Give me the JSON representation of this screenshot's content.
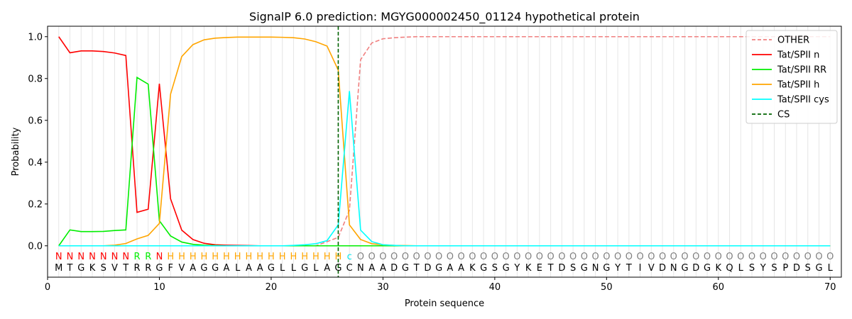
{
  "chart_data": {
    "type": "line",
    "title": "SignalP 6.0 prediction: MGYG000002450_01124 hypothetical protein",
    "xlabel": "Protein sequence",
    "ylabel": "Probability",
    "xlim": [
      0,
      71
    ],
    "ylim": [
      -0.15,
      1.05
    ],
    "xticks": [
      0,
      10,
      20,
      30,
      40,
      50,
      60,
      70
    ],
    "yticks": [
      0.0,
      0.2,
      0.4,
      0.6,
      0.8,
      1.0
    ],
    "xtick_labels": [
      "0",
      "10",
      "20",
      "30",
      "40",
      "50",
      "60",
      "70"
    ],
    "ytick_labels": [
      "0.0",
      "0.2",
      "0.4",
      "0.6",
      "0.8",
      "1.0"
    ],
    "grid": "vertical lines at each residue",
    "legend_position": "top-right",
    "cs_position": 26,
    "cs_label": "CS",
    "cs_color": "#006400",
    "sequence": [
      "M",
      "T",
      "G",
      "K",
      "S",
      "V",
      "T",
      "R",
      "R",
      "G",
      "F",
      "V",
      "A",
      "G",
      "G",
      "A",
      "L",
      "A",
      "A",
      "G",
      "L",
      "L",
      "G",
      "L",
      "A",
      "G",
      "C",
      "N",
      "A",
      "A",
      "D",
      "G",
      "T",
      "D",
      "G",
      "A",
      "A",
      "K",
      "G",
      "S",
      "G",
      "Y",
      "K",
      "E",
      "T",
      "D",
      "S",
      "G",
      "N",
      "G",
      "Y",
      "T",
      "I",
      "V",
      "D",
      "N",
      "G",
      "D",
      "G",
      "K",
      "Q",
      "L",
      "S",
      "Y",
      "S",
      "P",
      "D",
      "S",
      "G",
      "L"
    ],
    "labels": [
      "N",
      "N",
      "N",
      "N",
      "N",
      "N",
      "N",
      "R",
      "R",
      "N",
      "H",
      "H",
      "H",
      "H",
      "H",
      "H",
      "H",
      "H",
      "H",
      "H",
      "H",
      "H",
      "H",
      "H",
      "H",
      "H",
      "c",
      "O",
      "O",
      "O",
      "O",
      "O",
      "O",
      "O",
      "O",
      "O",
      "O",
      "O",
      "O",
      "O",
      "O",
      "O",
      "O",
      "O",
      "O",
      "O",
      "O",
      "O",
      "O",
      "O",
      "O",
      "O",
      "O",
      "O",
      "O",
      "O",
      "O",
      "O",
      "O",
      "O",
      "O",
      "O",
      "O",
      "O",
      "O",
      "O",
      "O",
      "O",
      "O",
      "O"
    ],
    "label_colors": {
      "N": "#ff0000",
      "R": "#00ee00",
      "H": "#ffa500",
      "c": "#00e5ee",
      "O": "#808080"
    },
    "series": [
      {
        "name": "OTHER",
        "color": "#f08080",
        "dashed": true,
        "values": [
          0,
          0,
          0,
          0,
          0,
          0,
          0,
          0,
          0,
          0,
          0,
          0,
          0,
          0,
          0,
          0,
          0,
          0,
          0,
          0,
          0,
          0,
          0,
          0,
          0.02,
          0.04,
          0.17,
          0.89,
          0.97,
          0.99,
          0.995,
          0.998,
          1,
          1,
          1,
          1,
          1,
          1,
          1,
          1,
          1,
          1,
          1,
          1,
          1,
          1,
          1,
          1,
          1,
          1,
          1,
          1,
          1,
          1,
          1,
          1,
          1,
          1,
          1,
          1,
          1,
          1,
          1,
          1,
          1,
          1,
          1,
          1,
          1,
          1
        ]
      },
      {
        "name": "Tat/SPII n",
        "color": "#ff0000",
        "dashed": false,
        "values": [
          1.0,
          0.923,
          0.932,
          0.932,
          0.929,
          0.922,
          0.91,
          0.16,
          0.175,
          0.775,
          0.225,
          0.075,
          0.03,
          0.012,
          0.005,
          0.003,
          0.002,
          0.001,
          0,
          0,
          0,
          0,
          0,
          0,
          0,
          0,
          0,
          0,
          0,
          0,
          0,
          0,
          0,
          0,
          0,
          0,
          0,
          0,
          0,
          0,
          0,
          0,
          0,
          0,
          0,
          0,
          0,
          0,
          0,
          0,
          0,
          0,
          0,
          0,
          0,
          0,
          0,
          0,
          0,
          0,
          0,
          0,
          0,
          0,
          0,
          0,
          0,
          0,
          0,
          0
        ]
      },
      {
        "name": "Tat/SPII RR",
        "color": "#00ee00",
        "dashed": false,
        "values": [
          0,
          0.076,
          0.068,
          0.068,
          0.069,
          0.073,
          0.076,
          0.805,
          0.773,
          0.12,
          0.047,
          0.018,
          0.007,
          0.003,
          0.001,
          0,
          0,
          0,
          0,
          0,
          0,
          0,
          0,
          0,
          0,
          0,
          0,
          0,
          0,
          0,
          0,
          0,
          0,
          0,
          0,
          0,
          0,
          0,
          0,
          0,
          0,
          0,
          0,
          0,
          0,
          0,
          0,
          0,
          0,
          0,
          0,
          0,
          0,
          0,
          0,
          0,
          0,
          0,
          0,
          0,
          0,
          0,
          0,
          0,
          0,
          0,
          0,
          0,
          0,
          0
        ]
      },
      {
        "name": "Tat/SPII h",
        "color": "#ffa500",
        "dashed": false,
        "values": [
          0,
          0,
          0,
          0,
          0,
          0.003,
          0.011,
          0.033,
          0.05,
          0.107,
          0.725,
          0.905,
          0.962,
          0.985,
          0.993,
          0.996,
          0.998,
          0.998,
          0.998,
          0.998,
          0.997,
          0.995,
          0.989,
          0.976,
          0.955,
          0.84,
          0.1,
          0.03,
          0.01,
          0.005,
          0.002,
          0.001,
          0,
          0,
          0,
          0,
          0,
          0,
          0,
          0,
          0,
          0,
          0,
          0,
          0,
          0,
          0,
          0,
          0,
          0,
          0,
          0,
          0,
          0,
          0,
          0,
          0,
          0,
          0,
          0,
          0,
          0,
          0,
          0,
          0,
          0,
          0,
          0,
          0,
          0
        ]
      },
      {
        "name": "Tat/SPII cys",
        "color": "#00ffff",
        "dashed": false,
        "values": [
          0,
          0,
          0,
          0,
          0,
          0,
          0,
          0,
          0,
          0,
          0,
          0,
          0,
          0,
          0,
          0,
          0,
          0,
          0,
          0,
          0,
          0.002,
          0.005,
          0.01,
          0.025,
          0.1,
          0.74,
          0.075,
          0.02,
          0.005,
          0.002,
          0,
          0,
          0,
          0,
          0,
          0,
          0,
          0,
          0,
          0,
          0,
          0,
          0,
          0,
          0,
          0,
          0,
          0,
          0,
          0,
          0,
          0,
          0,
          0,
          0,
          0,
          0,
          0,
          0,
          0,
          0,
          0,
          0,
          0,
          0,
          0,
          0,
          0,
          0
        ]
      }
    ]
  }
}
